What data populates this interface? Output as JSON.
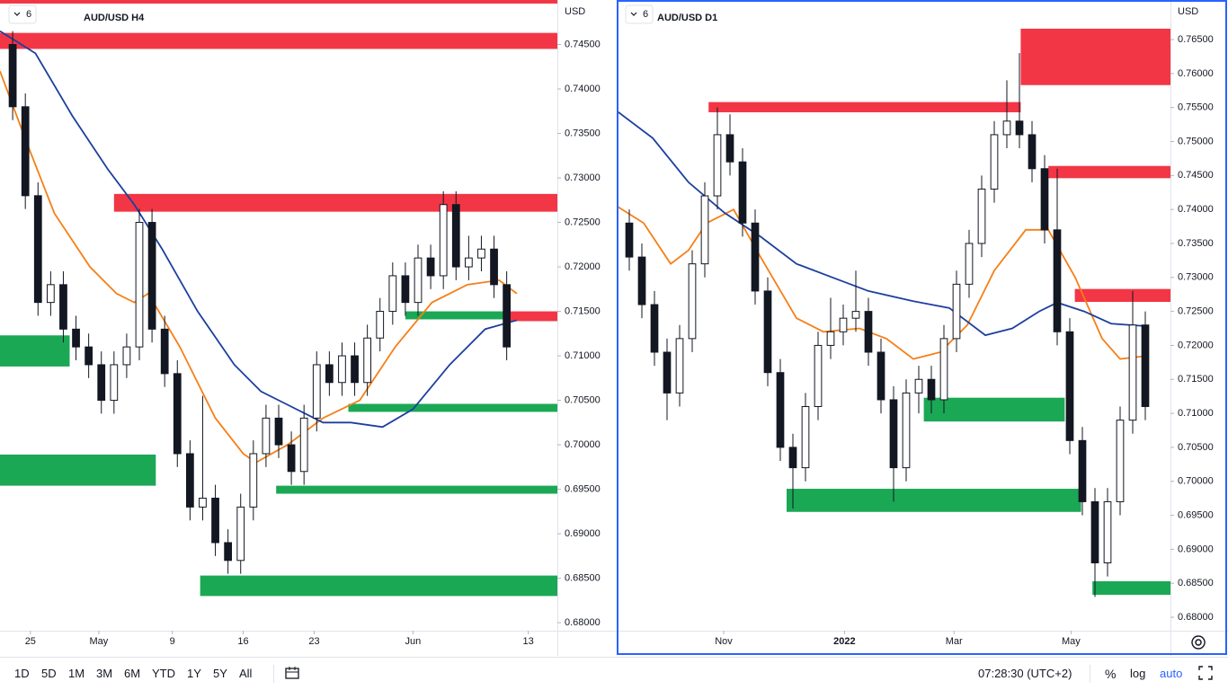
{
  "chart_data": [
    {
      "type": "candlestick",
      "title": "AUD/USD H4",
      "interval": "6",
      "currency": "USD",
      "ylim": [
        0.6791,
        0.75
      ],
      "xlim": [
        0,
        44
      ],
      "yticks": [
        {
          "value": 0.68,
          "label": "0.68000"
        },
        {
          "value": 0.685,
          "label": "0.68500"
        },
        {
          "value": 0.69,
          "label": "0.69000"
        },
        {
          "value": 0.695,
          "label": "0.69500"
        },
        {
          "value": 0.7,
          "label": "0.70000"
        },
        {
          "value": 0.705,
          "label": "0.70500"
        },
        {
          "value": 0.71,
          "label": "0.71000"
        },
        {
          "value": 0.715,
          "label": "0.71500"
        },
        {
          "value": 0.72,
          "label": "0.72000"
        },
        {
          "value": 0.725,
          "label": "0.72500"
        },
        {
          "value": 0.73,
          "label": "0.73000"
        },
        {
          "value": 0.735,
          "label": "0.73500"
        },
        {
          "value": 0.74,
          "label": "0.74000"
        },
        {
          "value": 0.745,
          "label": "0.74500"
        }
      ],
      "xticks": [
        {
          "value": 2.4,
          "label": "25"
        },
        {
          "value": 7.8,
          "label": "May"
        },
        {
          "value": 13.6,
          "label": "9"
        },
        {
          "value": 19.2,
          "label": "16"
        },
        {
          "value": 24.8,
          "label": "23"
        },
        {
          "value": 32.6,
          "label": "Jun"
        },
        {
          "value": 41.7,
          "label": "13"
        }
      ],
      "candles": {
        "x": [
          1,
          2,
          3,
          4,
          5,
          6,
          7,
          8,
          9,
          10,
          11,
          12,
          13,
          14,
          15,
          16,
          17,
          18,
          19,
          20,
          21,
          22,
          23,
          24,
          25,
          26,
          27,
          28,
          29,
          30,
          31,
          32,
          33,
          34,
          35,
          36,
          37,
          38,
          39,
          40
        ],
        "open": [
          0.745,
          0.738,
          0.728,
          0.716,
          0.718,
          0.713,
          0.711,
          0.709,
          0.705,
          0.709,
          0.711,
          0.725,
          0.713,
          0.708,
          0.699,
          0.693,
          0.694,
          0.689,
          0.687,
          0.693,
          0.699,
          0.703,
          0.7,
          0.697,
          0.703,
          0.709,
          0.707,
          0.71,
          0.707,
          0.712,
          0.715,
          0.719,
          0.716,
          0.721,
          0.719,
          0.727,
          0.72,
          0.721,
          0.722,
          0.718
        ],
        "high": [
          0.7465,
          0.7395,
          0.7295,
          0.7195,
          0.7195,
          0.7145,
          0.7125,
          0.7105,
          0.7105,
          0.7125,
          0.7265,
          0.7265,
          0.7145,
          0.7095,
          0.7005,
          0.7055,
          0.6955,
          0.6905,
          0.6945,
          0.7005,
          0.7045,
          0.7045,
          0.7015,
          0.7045,
          0.7105,
          0.7105,
          0.7115,
          0.7115,
          0.7135,
          0.7165,
          0.7205,
          0.7205,
          0.7225,
          0.7225,
          0.7285,
          0.7285,
          0.7235,
          0.7235,
          0.7235,
          0.7195
        ],
        "low": [
          0.7365,
          0.7265,
          0.7145,
          0.7145,
          0.7115,
          0.7095,
          0.7075,
          0.7035,
          0.7035,
          0.7075,
          0.7095,
          0.7115,
          0.7065,
          0.6975,
          0.6915,
          0.6915,
          0.6875,
          0.6855,
          0.6855,
          0.6915,
          0.6975,
          0.6985,
          0.6955,
          0.6955,
          0.7015,
          0.7055,
          0.7055,
          0.7055,
          0.7055,
          0.7105,
          0.7135,
          0.7145,
          0.7145,
          0.7175,
          0.7175,
          0.7185,
          0.7185,
          0.7195,
          0.7165,
          0.7095
        ],
        "close": [
          0.738,
          0.728,
          0.716,
          0.718,
          0.713,
          0.711,
          0.709,
          0.705,
          0.709,
          0.711,
          0.725,
          0.713,
          0.708,
          0.699,
          0.693,
          0.694,
          0.689,
          0.687,
          0.693,
          0.699,
          0.703,
          0.7,
          0.697,
          0.703,
          0.709,
          0.707,
          0.71,
          0.707,
          0.712,
          0.715,
          0.719,
          0.716,
          0.721,
          0.719,
          0.727,
          0.72,
          0.721,
          0.722,
          0.718,
          0.711
        ]
      },
      "lines": [
        {
          "color": "#f57f17",
          "x": [
            0,
            2.1,
            4.3,
            7.1,
            9.2,
            10.6,
            11.7,
            14.2,
            17.0,
            19.2,
            20.2,
            22.7,
            25.5,
            28.4,
            31.2,
            34.1,
            36.9,
            39.4,
            40.8
          ],
          "values": [
            0.742,
            0.734,
            0.726,
            0.72,
            0.717,
            0.716,
            0.717,
            0.711,
            0.703,
            0.699,
            0.698,
            0.7,
            0.703,
            0.705,
            0.711,
            0.716,
            0.718,
            0.7185,
            0.717
          ]
        },
        {
          "color": "#1c3f9e",
          "x": [
            0,
            2.8,
            5.7,
            8.5,
            10.6,
            12.8,
            15.6,
            18.5,
            20.6,
            22.7,
            25.5,
            27.7,
            30.2,
            32.6,
            35.5,
            38.3,
            40.8
          ],
          "values": [
            0.7465,
            0.744,
            0.737,
            0.731,
            0.727,
            0.722,
            0.715,
            0.709,
            0.706,
            0.7045,
            0.7025,
            0.7025,
            0.702,
            0.704,
            0.709,
            0.713,
            0.714
          ]
        }
      ],
      "zones": [
        {
          "color": "#f23645",
          "x": [
            0,
            44
          ],
          "y": [
            0.7496,
            0.751
          ]
        },
        {
          "color": "#f23645",
          "x": [
            0,
            44
          ],
          "y": [
            0.7445,
            0.7463
          ]
        },
        {
          "color": "#f23645",
          "x": [
            9.0,
            44
          ],
          "y": [
            0.7262,
            0.7282
          ]
        },
        {
          "color": "#f23645",
          "x": [
            40,
            44
          ],
          "y": [
            0.7139,
            0.715
          ]
        },
        {
          "color": "#1ba855",
          "x": [
            0,
            5.5
          ],
          "y": [
            0.7088,
            0.7123
          ]
        },
        {
          "color": "#1ba855",
          "x": [
            32,
            40
          ],
          "y": [
            0.7141,
            0.715
          ]
        },
        {
          "color": "#1ba855",
          "x": [
            27.5,
            44
          ],
          "y": [
            0.7037,
            0.7046
          ]
        },
        {
          "color": "#1ba855",
          "x": [
            0,
            12.3
          ],
          "y": [
            0.6954,
            0.6989
          ]
        },
        {
          "color": "#1ba855",
          "x": [
            21.8,
            44
          ],
          "y": [
            0.6945,
            0.6954
          ]
        },
        {
          "color": "#1ba855",
          "x": [
            15.8,
            44
          ],
          "y": [
            0.683,
            0.6853
          ]
        }
      ]
    },
    {
      "type": "candlestick",
      "title": "AUD/USD D1",
      "interval": "6",
      "currency": "USD",
      "ylim": [
        0.67802,
        0.77082
      ],
      "xlim": [
        0,
        44
      ],
      "yticks": [
        {
          "value": 0.68,
          "label": "0.68000"
        },
        {
          "value": 0.685,
          "label": "0.68500"
        },
        {
          "value": 0.69,
          "label": "0.69000"
        },
        {
          "value": 0.695,
          "label": "0.69500"
        },
        {
          "value": 0.7,
          "label": "0.70000"
        },
        {
          "value": 0.705,
          "label": "0.70500"
        },
        {
          "value": 0.71,
          "label": "0.71000"
        },
        {
          "value": 0.715,
          "label": "0.71500"
        },
        {
          "value": 0.72,
          "label": "0.72000"
        },
        {
          "value": 0.725,
          "label": "0.72500"
        },
        {
          "value": 0.73,
          "label": "0.73000"
        },
        {
          "value": 0.735,
          "label": "0.73500"
        },
        {
          "value": 0.74,
          "label": "0.74000"
        },
        {
          "value": 0.745,
          "label": "0.74500"
        },
        {
          "value": 0.75,
          "label": "0.75000"
        },
        {
          "value": 0.755,
          "label": "0.75500"
        },
        {
          "value": 0.76,
          "label": "0.76000"
        },
        {
          "value": 0.765,
          "label": "0.76500"
        }
      ],
      "xticks": [
        {
          "value": 8.5,
          "label": "Nov"
        },
        {
          "value": 18.1,
          "label": "2022"
        },
        {
          "value": 26.8,
          "label": "Mar"
        },
        {
          "value": 36.1,
          "label": "May"
        }
      ],
      "candles": {
        "x": [
          1,
          2,
          3,
          4,
          5,
          6,
          7,
          8,
          9,
          10,
          11,
          12,
          13,
          14,
          15,
          16,
          17,
          18,
          19,
          20,
          21,
          22,
          23,
          24,
          25,
          26,
          27,
          28,
          29,
          30,
          31,
          32,
          33,
          34,
          35,
          36,
          37,
          38,
          39,
          40,
          41,
          42
        ],
        "open": [
          0.738,
          0.733,
          0.726,
          0.719,
          0.713,
          0.721,
          0.732,
          0.742,
          0.751,
          0.747,
          0.738,
          0.728,
          0.716,
          0.705,
          0.702,
          0.711,
          0.72,
          0.722,
          0.724,
          0.725,
          0.719,
          0.712,
          0.702,
          0.713,
          0.715,
          0.712,
          0.721,
          0.729,
          0.735,
          0.743,
          0.751,
          0.753,
          0.751,
          0.746,
          0.737,
          0.722,
          0.706,
          0.697,
          0.688,
          0.697,
          0.709,
          0.723
        ],
        "high": [
          0.74,
          0.735,
          0.728,
          0.721,
          0.723,
          0.734,
          0.744,
          0.755,
          0.754,
          0.749,
          0.74,
          0.73,
          0.718,
          0.707,
          0.713,
          0.722,
          0.727,
          0.726,
          0.731,
          0.727,
          0.721,
          0.714,
          0.715,
          0.717,
          0.717,
          0.723,
          0.731,
          0.737,
          0.745,
          0.753,
          0.759,
          0.763,
          0.753,
          0.748,
          0.746,
          0.724,
          0.708,
          0.699,
          0.699,
          0.711,
          0.728,
          0.725
        ],
        "low": [
          0.731,
          0.724,
          0.717,
          0.709,
          0.711,
          0.719,
          0.73,
          0.74,
          0.745,
          0.736,
          0.726,
          0.714,
          0.703,
          0.696,
          0.7,
          0.709,
          0.718,
          0.72,
          0.722,
          0.717,
          0.71,
          0.697,
          0.7,
          0.71,
          0.71,
          0.71,
          0.719,
          0.727,
          0.733,
          0.741,
          0.749,
          0.749,
          0.744,
          0.735,
          0.72,
          0.704,
          0.695,
          0.683,
          0.686,
          0.695,
          0.707,
          0.709
        ],
        "close": [
          0.733,
          0.726,
          0.719,
          0.713,
          0.721,
          0.732,
          0.742,
          0.751,
          0.747,
          0.738,
          0.728,
          0.716,
          0.705,
          0.702,
          0.711,
          0.72,
          0.722,
          0.724,
          0.725,
          0.719,
          0.712,
          0.702,
          0.713,
          0.715,
          0.712,
          0.721,
          0.729,
          0.735,
          0.743,
          0.751,
          0.753,
          0.751,
          0.746,
          0.737,
          0.722,
          0.706,
          0.697,
          0.688,
          0.697,
          0.709,
          0.723,
          0.711
        ]
      },
      "lines": [
        {
          "color": "#f57f17",
          "x": [
            0,
            2.14,
            4.29,
            5.71,
            7.14,
            9.29,
            11.43,
            14.29,
            16.43,
            19.29,
            21.43,
            23.57,
            25.71,
            27.86,
            30,
            32.5,
            34.29,
            36.43,
            38.57,
            40,
            42.29
          ],
          "values": [
            0.7405,
            0.738,
            0.732,
            0.734,
            0.738,
            0.74,
            0.733,
            0.724,
            0.722,
            0.7225,
            0.721,
            0.718,
            0.719,
            0.723,
            0.731,
            0.737,
            0.737,
            0.73,
            0.721,
            0.718,
            0.7185
          ]
        },
        {
          "color": "#1c3f9e",
          "x": [
            0,
            2.86,
            5.71,
            8.57,
            11.43,
            14.29,
            17.14,
            20,
            23.57,
            26.43,
            29.29,
            31.43,
            33.57,
            35,
            37.14,
            39.29,
            42.29
          ],
          "values": [
            0.7545,
            0.7505,
            0.744,
            0.7395,
            0.736,
            0.732,
            0.73,
            0.728,
            0.7265,
            0.7255,
            0.7215,
            0.7225,
            0.725,
            0.7263,
            0.725,
            0.7232,
            0.7228
          ]
        }
      ],
      "zones": [
        {
          "color": "#f23645",
          "x": [
            32.1,
            44
          ],
          "y": [
            0.7583,
            0.7666
          ]
        },
        {
          "color": "#f23645",
          "x": [
            7.3,
            32.1
          ],
          "y": [
            0.7543,
            0.7558
          ]
        },
        {
          "color": "#f23645",
          "x": [
            34.3,
            44
          ],
          "y": [
            0.7446,
            0.7464
          ]
        },
        {
          "color": "#f23645",
          "x": [
            36.4,
            44
          ],
          "y": [
            0.7264,
            0.7283
          ]
        },
        {
          "color": "#1ba855",
          "x": [
            24.4,
            35.6
          ],
          "y": [
            0.7088,
            0.7123
          ]
        },
        {
          "color": "#1ba855",
          "x": [
            13.5,
            36.9
          ],
          "y": [
            0.6955,
            0.6989
          ]
        },
        {
          "color": "#1ba855",
          "x": [
            37.8,
            44
          ],
          "y": [
            0.6833,
            0.6853
          ]
        }
      ]
    }
  ],
  "toolbar": {
    "ranges": [
      "1D",
      "5D",
      "1M",
      "3M",
      "6M",
      "YTD",
      "1Y",
      "5Y",
      "All"
    ],
    "clock": "07:28:30 (UTC+2)",
    "percent": "%",
    "log": "log",
    "auto": "auto"
  }
}
